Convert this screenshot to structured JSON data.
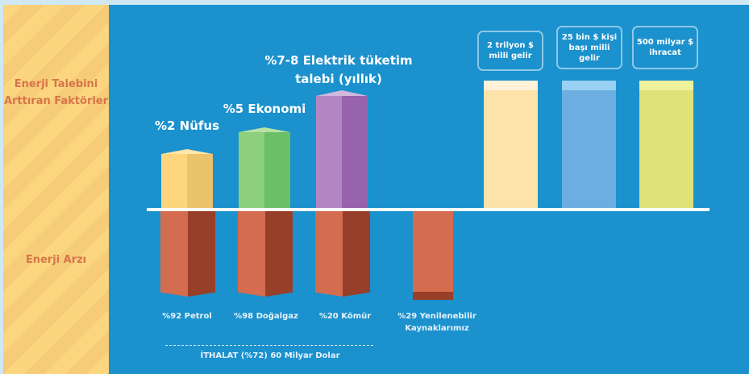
{
  "side": {
    "demand": "Enerji Talebini Arttıran Faktörler",
    "supply": "Enerji Arzı"
  },
  "demand_bars": [
    {
      "label": "%2 Nüfus",
      "color": "#fcd57d",
      "dark": "#ebc36d",
      "cap": "#fde6a8"
    },
    {
      "label": "%5 Ekonomi",
      "color": "#8ccf7d",
      "dark": "#6bbf68",
      "cap": "#b6e2a4"
    },
    {
      "label": "%7-8 Elektrik tüketim",
      "label2": "talebi (yıllık)",
      "color": "#b287c1",
      "dark": "#9763ac",
      "cap": "#d3b8dd"
    }
  ],
  "goals": [
    {
      "label": "2 trilyon $ milli gelir",
      "color": "#fde3a9",
      "top": "#fff2d8"
    },
    {
      "label": "25 bin $ kişi başı milli gelir",
      "color": "#6caee0",
      "top": "#98d1f4"
    },
    {
      "label": "500 milyar $ ihracat",
      "color": "#dfe179",
      "top": "#eef29c"
    }
  ],
  "supply_bars": [
    {
      "label": "%92 Petrol"
    },
    {
      "label": "%98 Doğalgaz"
    },
    {
      "label": "%20 Kömür"
    },
    {
      "label": "%29 Yenilenebilir",
      "label2": "Kaynaklarımız"
    }
  ],
  "import_note": "İTHALAT (%72) 60 Milyar Dolar"
}
